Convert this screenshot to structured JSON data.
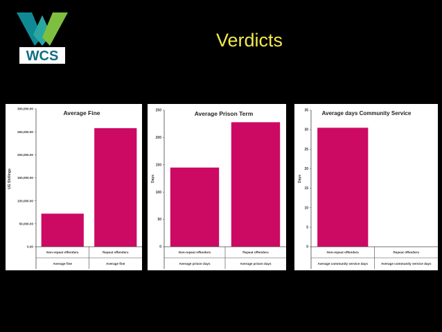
{
  "slide": {
    "title": "Verdicts",
    "logo_text": "WCS"
  },
  "colors": {
    "background": "#000000",
    "title": "#f2e94e",
    "bar": "#cc0a63",
    "logo_teal": "#0f8a95",
    "logo_green": "#7fbf3f"
  },
  "chart_data": [
    {
      "type": "bar",
      "title": "Average Fine",
      "ylabel": "UG Shillings",
      "ylim": [
        0,
        300000
      ],
      "yticks": [
        0,
        50000,
        100000,
        150000,
        200000,
        250000,
        300000
      ],
      "ytick_labels": [
        "0.00",
        "50,000.00",
        "100,000.00",
        "150,000.00",
        "200,000.00",
        "250,000.00",
        "300,000.00"
      ],
      "categories": [
        "Non-repeat offenders",
        "Repeat offenders"
      ],
      "sublabels": [
        "Average fine",
        "Average fine"
      ],
      "values": [
        72000,
        258000
      ],
      "grid": false,
      "legend": "none"
    },
    {
      "type": "bar",
      "title": "Average Prison Term",
      "ylabel": "Days",
      "ylim": [
        0,
        250
      ],
      "yticks": [
        0,
        50,
        100,
        150,
        200,
        250
      ],
      "ytick_labels": [
        "0",
        "50",
        "100",
        "150",
        "200",
        "250"
      ],
      "categories": [
        "Non-repeat offenders",
        "Repeat offenders"
      ],
      "sublabels": [
        "Average prison days",
        "Average prison days"
      ],
      "values": [
        145,
        228
      ],
      "grid": false,
      "legend": "none"
    },
    {
      "type": "bar",
      "title": "Average days Community Service",
      "ylabel": "Days",
      "ylim": [
        0,
        35
      ],
      "yticks": [
        0,
        5,
        10,
        15,
        20,
        25,
        30,
        35
      ],
      "ytick_labels": [
        "0",
        "5",
        "10",
        "15",
        "20",
        "25",
        "30",
        "35"
      ],
      "categories": [
        "Non-repeat offenders",
        "Repeat offenders"
      ],
      "sublabels": [
        "Average community service days",
        "Average community service days"
      ],
      "values": [
        30.5,
        0
      ],
      "grid": false,
      "legend": "none"
    }
  ]
}
